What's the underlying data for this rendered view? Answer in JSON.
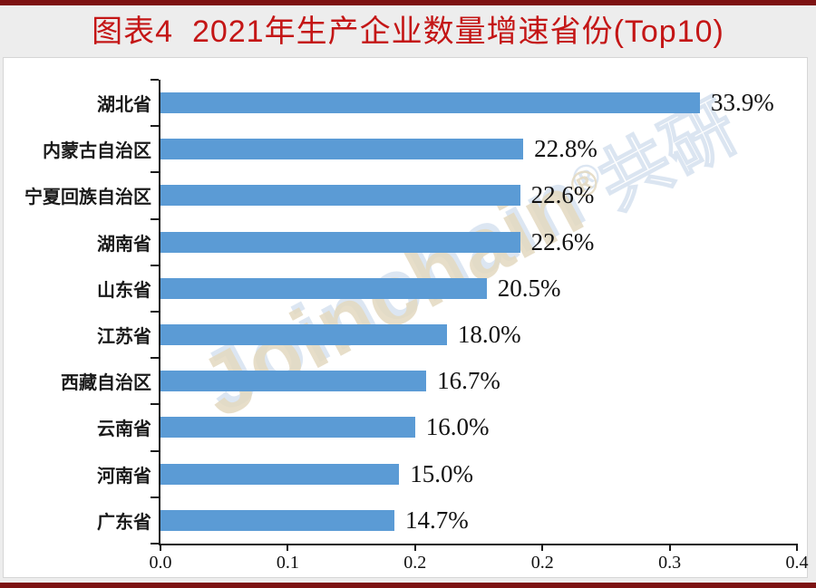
{
  "page": {
    "background": "#ededed",
    "border_color": "#7d1212",
    "panel_background": "#ffffff"
  },
  "header": {
    "title": "图表4  2021年生产企业数量增速省份(Top10)",
    "title_color": "#c41616"
  },
  "watermark": {
    "text": "Joinchain",
    "reg": "®",
    "suffix": "共研"
  },
  "chart_data": {
    "type": "bar",
    "orientation": "horizontal",
    "title": "图表4 2021年生产企业数量增速省份(Top10)",
    "categories": [
      "湖北省",
      "内蒙古自治区",
      "宁夏回族自治区",
      "湖南省",
      "山东省",
      "江苏省",
      "西藏自治区",
      "云南省",
      "河南省",
      "广东省"
    ],
    "values": [
      0.339,
      0.228,
      0.226,
      0.226,
      0.205,
      0.18,
      0.167,
      0.16,
      0.15,
      0.147
    ],
    "value_labels": [
      "33.9%",
      "22.8%",
      "22.6%",
      "22.6%",
      "20.5%",
      "18.0%",
      "16.7%",
      "16.0%",
      "15.0%",
      "14.7%"
    ],
    "xlim": [
      0,
      0.4
    ],
    "x_tick_labels": [
      "0.0",
      "0.1",
      "0.2",
      "0.2",
      "0.3",
      "0.4"
    ],
    "xlabel": "",
    "ylabel": "",
    "bar_color": "#5b9bd5",
    "grid": false,
    "legend": false
  }
}
